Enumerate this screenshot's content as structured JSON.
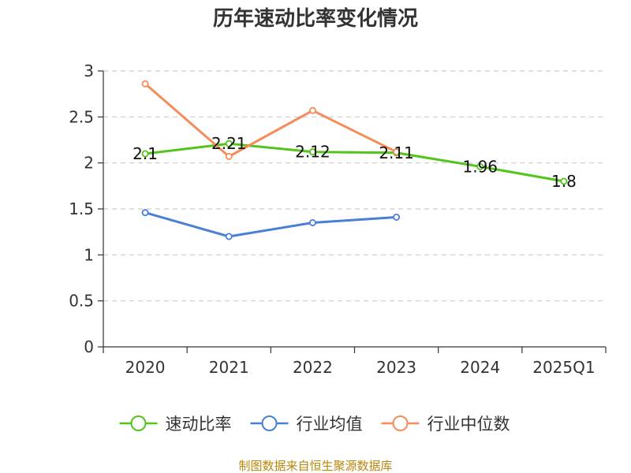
{
  "chart_data": {
    "type": "line",
    "title": "历年速动比率变化情况",
    "categories": [
      "2020",
      "2021",
      "2022",
      "2023",
      "2024",
      "2025Q1"
    ],
    "ylim": [
      0,
      3
    ],
    "yticks": [
      "0",
      "0.5",
      "1",
      "1.5",
      "2",
      "2.5",
      "3"
    ],
    "grid": true,
    "series": [
      {
        "name": "速动比率",
        "color": "#52c41a",
        "values": [
          2.1,
          2.21,
          2.12,
          2.11,
          1.96,
          1.8
        ],
        "labels": [
          "2.1",
          "2.21",
          "2.12",
          "2.11",
          "1.96",
          "1.8"
        ]
      },
      {
        "name": "行业均值",
        "color": "#4a7fd6",
        "values": [
          1.46,
          1.2,
          1.35,
          1.41,
          null,
          null
        ]
      },
      {
        "name": "行业中位数",
        "color": "#f58c5a",
        "values": [
          2.86,
          2.07,
          2.57,
          2.12,
          null,
          null
        ]
      }
    ],
    "legend_position": "bottom"
  },
  "footer": "制图数据来自恒生聚源数据库"
}
